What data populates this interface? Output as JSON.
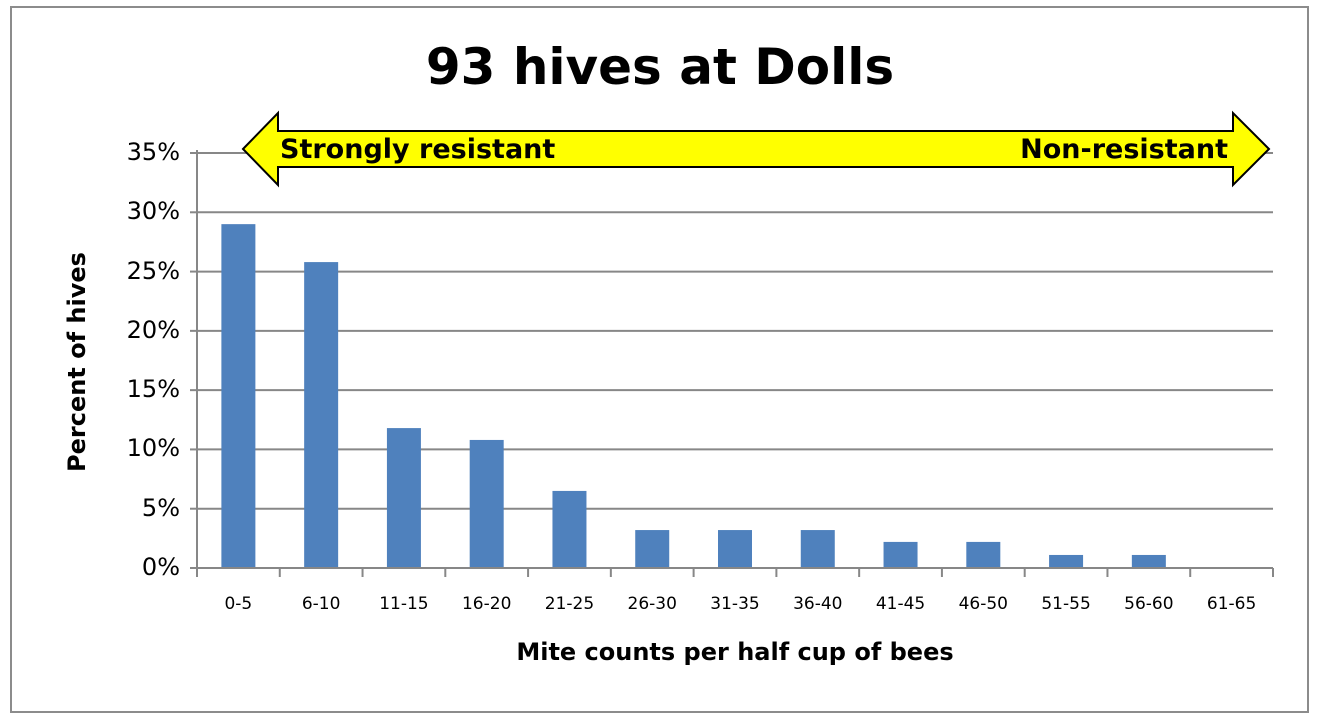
{
  "chart_data": {
    "type": "bar",
    "title": "93 hives at Dolls",
    "xlabel": "Mite counts per half cup of bees",
    "ylabel": "Percent of hives",
    "categories": [
      "0-5",
      "6-10",
      "11-15",
      "16-20",
      "21-25",
      "26-30",
      "31-35",
      "36-40",
      "41-45",
      "46-50",
      "51-55",
      "56-60",
      "61-65"
    ],
    "values": [
      29.0,
      25.8,
      11.8,
      10.8,
      6.5,
      3.2,
      3.2,
      3.2,
      2.2,
      2.2,
      1.1,
      1.1,
      0
    ],
    "ylim": [
      0,
      35
    ],
    "yticks": [
      "0%",
      "5%",
      "10%",
      "15%",
      "20%",
      "25%",
      "30%",
      "35%"
    ],
    "grid": true,
    "legend": null,
    "bar_color": "#4f81bd",
    "annotations": [
      {
        "type": "double-arrow",
        "left_label": "Strongly resistant",
        "right_label": "Non-resistant",
        "fill": "#ffff00"
      }
    ]
  },
  "title": "93 hives at Dolls",
  "axes": {
    "x_title": "Mite counts per half cup of bees",
    "y_title": "Percent of hives"
  },
  "arrow": {
    "left_label": "Strongly resistant",
    "right_label": "Non-resistant"
  }
}
